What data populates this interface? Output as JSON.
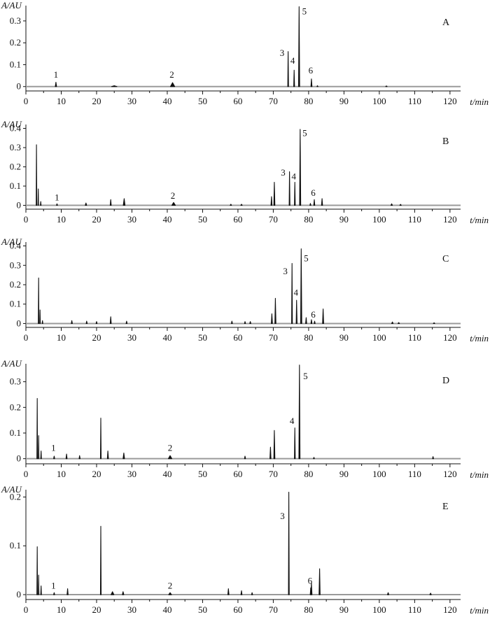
{
  "chart_data": [
    {
      "type": "line",
      "panel": "A",
      "ylabel": "A/AU",
      "xlabel": "t/min",
      "xlim": [
        0,
        123
      ],
      "ylim": [
        -0.02,
        0.37
      ],
      "yticks": [
        0,
        0.1,
        0.2,
        0.3
      ],
      "ytick_labels": [
        "0",
        "0.1",
        "0.2",
        "0.3"
      ],
      "xticks": [
        0,
        10,
        20,
        30,
        40,
        50,
        60,
        70,
        80,
        90,
        100,
        110,
        120
      ],
      "xtick_labels": [
        "0",
        "10",
        "20",
        "30",
        "40",
        "50",
        "60",
        "70",
        "80",
        "90",
        "100",
        "110",
        "120"
      ],
      "peaks": [
        {
          "t": 8.5,
          "h": 0.02,
          "w": 0.35
        },
        {
          "t": 25,
          "h": 0.004,
          "w": 1.5
        },
        {
          "t": 41.5,
          "h": 0.018,
          "w": 1.2
        },
        {
          "t": 74.2,
          "h": 0.16,
          "w": 0.22
        },
        {
          "t": 75.9,
          "h": 0.075,
          "w": 0.25
        },
        {
          "t": 77.3,
          "h": 0.365,
          "w": 0.32
        },
        {
          "t": 80.8,
          "h": 0.035,
          "w": 0.3
        },
        {
          "t": 82.5,
          "h": 0.004,
          "w": 0.3
        },
        {
          "t": 102,
          "h": 0.003,
          "w": 0.4
        }
      ],
      "annotations": [
        {
          "text": "1",
          "t": 8.5,
          "y": 0.04
        },
        {
          "text": "2",
          "t": 41.3,
          "y": 0.04
        },
        {
          "text": "3",
          "t": 72.5,
          "y": 0.14
        },
        {
          "text": "4",
          "t": 75.5,
          "y": 0.105
        },
        {
          "text": "5",
          "t": 78.8,
          "y": 0.33
        },
        {
          "text": "6",
          "t": 80.6,
          "y": 0.06
        }
      ]
    },
    {
      "type": "line",
      "panel": "B",
      "ylabel": "A/AU",
      "xlabel": "t/min",
      "xlim": [
        0,
        123
      ],
      "ylim": [
        -0.02,
        0.42
      ],
      "yticks": [
        0,
        0.1,
        0.2,
        0.3,
        0.4
      ],
      "ytick_labels": [
        "0",
        "0.1",
        "0.2",
        "0.3",
        "0.4"
      ],
      "xticks": [
        0,
        10,
        20,
        30,
        40,
        50,
        60,
        70,
        80,
        90,
        100,
        110,
        120
      ],
      "xtick_labels": [
        "0",
        "10",
        "20",
        "30",
        "40",
        "50",
        "60",
        "70",
        "80",
        "90",
        "100",
        "110",
        "120"
      ],
      "peaks": [
        {
          "t": 3.0,
          "h": 0.315,
          "w": 0.18
        },
        {
          "t": 3.5,
          "h": 0.085,
          "w": 0.15
        },
        {
          "t": 4.2,
          "h": 0.02,
          "w": 0.2
        },
        {
          "t": 8.8,
          "h": 0.008,
          "w": 0.3
        },
        {
          "t": 17,
          "h": 0.012,
          "w": 0.4
        },
        {
          "t": 24,
          "h": 0.03,
          "w": 0.3
        },
        {
          "t": 27.8,
          "h": 0.035,
          "w": 0.5
        },
        {
          "t": 41.8,
          "h": 0.015,
          "w": 1.0
        },
        {
          "t": 58,
          "h": 0.006,
          "w": 0.4
        },
        {
          "t": 61,
          "h": 0.006,
          "w": 0.4
        },
        {
          "t": 69.5,
          "h": 0.045,
          "w": 0.3
        },
        {
          "t": 70.3,
          "h": 0.12,
          "w": 0.3
        },
        {
          "t": 74.6,
          "h": 0.175,
          "w": 0.22
        },
        {
          "t": 76.1,
          "h": 0.12,
          "w": 0.25
        },
        {
          "t": 77.6,
          "h": 0.395,
          "w": 0.32
        },
        {
          "t": 80.5,
          "h": 0.01,
          "w": 0.3
        },
        {
          "t": 83.8,
          "h": 0.035,
          "w": 0.3
        },
        {
          "t": 81.6,
          "h": 0.03,
          "w": 0.3
        },
        {
          "t": 103.5,
          "h": 0.008,
          "w": 0.4
        },
        {
          "t": 106,
          "h": 0.005,
          "w": 0.4
        }
      ],
      "annotations": [
        {
          "text": "1",
          "t": 8.8,
          "y": 0.025
        },
        {
          "text": "2",
          "t": 41.6,
          "y": 0.035
        },
        {
          "text": "3",
          "t": 72.8,
          "y": 0.155
        },
        {
          "text": "4",
          "t": 75.8,
          "y": 0.135
        },
        {
          "text": "5",
          "t": 78.9,
          "y": 0.36
        },
        {
          "text": "6",
          "t": 81.3,
          "y": 0.05
        }
      ]
    },
    {
      "type": "line",
      "panel": "C",
      "ylabel": "A/AU",
      "xlabel": "t/min",
      "xlim": [
        0,
        123
      ],
      "ylim": [
        -0.02,
        0.42
      ],
      "yticks": [
        0,
        0.1,
        0.2,
        0.3,
        0.4
      ],
      "ytick_labels": [
        "0",
        "0.1",
        "0.2",
        "0.3",
        "0.4"
      ],
      "xticks": [
        0,
        10,
        20,
        30,
        40,
        50,
        60,
        70,
        80,
        90,
        100,
        110,
        120
      ],
      "xtick_labels": [
        "0",
        "10",
        "20",
        "30",
        "40",
        "50",
        "60",
        "70",
        "80",
        "90",
        "100",
        "110",
        "120"
      ],
      "peaks": [
        {
          "t": 3.6,
          "h": 0.235,
          "w": 0.18
        },
        {
          "t": 4.0,
          "h": 0.07,
          "w": 0.15
        },
        {
          "t": 4.7,
          "h": 0.015,
          "w": 0.2
        },
        {
          "t": 13,
          "h": 0.015,
          "w": 0.3
        },
        {
          "t": 17.2,
          "h": 0.012,
          "w": 0.3
        },
        {
          "t": 20,
          "h": 0.01,
          "w": 0.3
        },
        {
          "t": 24,
          "h": 0.035,
          "w": 0.3
        },
        {
          "t": 28.5,
          "h": 0.012,
          "w": 0.3
        },
        {
          "t": 58.3,
          "h": 0.012,
          "w": 0.3
        },
        {
          "t": 62,
          "h": 0.01,
          "w": 0.3
        },
        {
          "t": 63.5,
          "h": 0.01,
          "w": 0.3
        },
        {
          "t": 69.6,
          "h": 0.05,
          "w": 0.3
        },
        {
          "t": 70.6,
          "h": 0.13,
          "w": 0.3
        },
        {
          "t": 75.3,
          "h": 0.31,
          "w": 0.22
        },
        {
          "t": 76.6,
          "h": 0.12,
          "w": 0.25
        },
        {
          "t": 77.9,
          "h": 0.385,
          "w": 0.32
        },
        {
          "t": 79.3,
          "h": 0.03,
          "w": 0.3
        },
        {
          "t": 80.8,
          "h": 0.02,
          "w": 0.3
        },
        {
          "t": 84.1,
          "h": 0.075,
          "w": 0.3
        },
        {
          "t": 81.7,
          "h": 0.012,
          "w": 0.3
        },
        {
          "t": 103.7,
          "h": 0.008,
          "w": 0.4
        },
        {
          "t": 105.5,
          "h": 0.005,
          "w": 0.4
        },
        {
          "t": 115.5,
          "h": 0.004,
          "w": 0.4
        }
      ],
      "annotations": [
        {
          "text": "3",
          "t": 73.4,
          "y": 0.255
        },
        {
          "text": "4",
          "t": 76.4,
          "y": 0.145
        },
        {
          "text": "5",
          "t": 79.3,
          "y": 0.32
        },
        {
          "text": "6",
          "t": 81.3,
          "y": 0.03
        }
      ]
    },
    {
      "type": "line",
      "panel": "D",
      "ylabel": "A/AU",
      "xlabel": "t/min",
      "xlim": [
        0,
        123
      ],
      "ylim": [
        -0.02,
        0.37
      ],
      "yticks": [
        0,
        0.1,
        0.2,
        0.3
      ],
      "ytick_labels": [
        "0",
        "0.1",
        "0.2",
        "0.3"
      ],
      "xticks": [
        0,
        10,
        20,
        30,
        40,
        50,
        60,
        70,
        80,
        90,
        100,
        110,
        120
      ],
      "xtick_labels": [
        "0",
        "10",
        "20",
        "30",
        "40",
        "50",
        "60",
        "70",
        "80",
        "90",
        "100",
        "110",
        "120"
      ],
      "peaks": [
        {
          "t": 3.2,
          "h": 0.235,
          "w": 0.18
        },
        {
          "t": 3.6,
          "h": 0.09,
          "w": 0.15
        },
        {
          "t": 4.3,
          "h": 0.03,
          "w": 0.2
        },
        {
          "t": 8,
          "h": 0.01,
          "w": 0.3
        },
        {
          "t": 11.5,
          "h": 0.018,
          "w": 0.3
        },
        {
          "t": 15.2,
          "h": 0.012,
          "w": 0.3
        },
        {
          "t": 21.2,
          "h": 0.158,
          "w": 0.2
        },
        {
          "t": 23.2,
          "h": 0.03,
          "w": 0.3
        },
        {
          "t": 27.7,
          "h": 0.022,
          "w": 0.4
        },
        {
          "t": 40.8,
          "h": 0.012,
          "w": 1.0
        },
        {
          "t": 62,
          "h": 0.01,
          "w": 0.3
        },
        {
          "t": 69.2,
          "h": 0.045,
          "w": 0.3
        },
        {
          "t": 70.3,
          "h": 0.11,
          "w": 0.3
        },
        {
          "t": 76.1,
          "h": 0.12,
          "w": 0.25
        },
        {
          "t": 77.4,
          "h": 0.365,
          "w": 0.32
        },
        {
          "t": 81.5,
          "h": 0.005,
          "w": 0.3
        },
        {
          "t": 115.2,
          "h": 0.008,
          "w": 0.3
        }
      ],
      "annotations": [
        {
          "text": "1",
          "t": 7.8,
          "y": 0.03
        },
        {
          "text": "2",
          "t": 40.8,
          "y": 0.03
        },
        {
          "text": "4",
          "t": 75.3,
          "y": 0.135
        },
        {
          "text": "5",
          "t": 79.1,
          "y": 0.31
        }
      ]
    },
    {
      "type": "line",
      "panel": "E",
      "ylabel": "A/AU",
      "xlabel": "t/min",
      "xlim": [
        0,
        123
      ],
      "ylim": [
        -0.01,
        0.215
      ],
      "yticks": [
        0,
        0.1,
        0.2
      ],
      "ytick_labels": [
        "0",
        "0.1",
        "0.2"
      ],
      "xticks": [
        0,
        10,
        20,
        30,
        40,
        50,
        60,
        70,
        80,
        90,
        100,
        110,
        120
      ],
      "xtick_labels": [
        "0",
        "10",
        "20",
        "30",
        "40",
        "50",
        "60",
        "70",
        "80",
        "90",
        "100",
        "110",
        "120"
      ],
      "peaks": [
        {
          "t": 3.2,
          "h": 0.098,
          "w": 0.18
        },
        {
          "t": 3.6,
          "h": 0.04,
          "w": 0.15
        },
        {
          "t": 4.3,
          "h": 0.018,
          "w": 0.2
        },
        {
          "t": 8,
          "h": 0.004,
          "w": 0.3
        },
        {
          "t": 11.8,
          "h": 0.012,
          "w": 0.3
        },
        {
          "t": 21.2,
          "h": 0.14,
          "w": 0.2
        },
        {
          "t": 24.5,
          "h": 0.006,
          "w": 0.8
        },
        {
          "t": 27.5,
          "h": 0.006,
          "w": 0.4
        },
        {
          "t": 40.8,
          "h": 0.004,
          "w": 0.8
        },
        {
          "t": 57.3,
          "h": 0.012,
          "w": 0.3
        },
        {
          "t": 61,
          "h": 0.008,
          "w": 0.3
        },
        {
          "t": 64,
          "h": 0.004,
          "w": 0.3
        },
        {
          "t": 74.4,
          "h": 0.21,
          "w": 0.22
        },
        {
          "t": 80.8,
          "h": 0.024,
          "w": 0.3
        },
        {
          "t": 83.1,
          "h": 0.053,
          "w": 0.3
        },
        {
          "t": 80.6,
          "h": 0.014,
          "w": 0.3
        },
        {
          "t": 102.5,
          "h": 0.004,
          "w": 0.4
        },
        {
          "t": 114.5,
          "h": 0.003,
          "w": 0.4
        }
      ],
      "annotations": [
        {
          "text": "1",
          "t": 7.8,
          "y": 0.012
        },
        {
          "text": "2",
          "t": 40.8,
          "y": 0.012
        },
        {
          "text": "3",
          "t": 72.6,
          "y": 0.155
        },
        {
          "text": "6",
          "t": 80.4,
          "y": 0.022
        }
      ]
    }
  ]
}
